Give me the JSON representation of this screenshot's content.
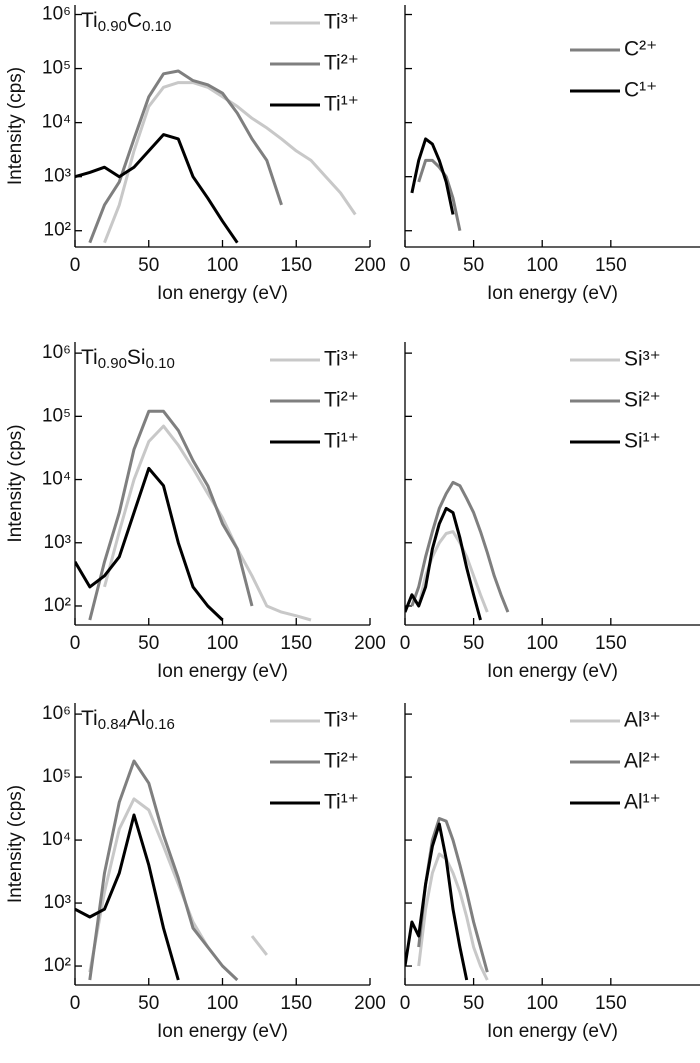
{
  "chart_data": [
    {
      "type": "line",
      "title": [
        {
          "text": "Ti"
        },
        {
          "text": "0.90",
          "sub": true
        },
        {
          "text": "C"
        },
        {
          "text": "0.10",
          "sub": true
        }
      ],
      "ylabel": "Intensity (cps)",
      "xlabel": "Ion energy (eV)",
      "log_y": true,
      "x": [
        0,
        10,
        20,
        30,
        40,
        50,
        60,
        70,
        80,
        90,
        100,
        110,
        120,
        130,
        140,
        150,
        160,
        170,
        180,
        190,
        200
      ],
      "xlim": [
        0,
        200
      ],
      "xticks": [
        0,
        50,
        100,
        150,
        200
      ],
      "ylim": [
        50,
        1500000
      ],
      "yticks": [
        {
          "value": 100,
          "label": "10²"
        },
        {
          "value": 1000,
          "label": "10³"
        },
        {
          "value": 10000,
          "label": "10⁴"
        },
        {
          "value": 100000,
          "label": "10⁵"
        },
        {
          "value": 1000000,
          "label": "10⁶"
        }
      ],
      "series": [
        {
          "name": "Ti³⁺",
          "color": "#c8c8c8",
          "values": [
            null,
            null,
            60,
            300,
            3000,
            20000,
            45000,
            55000,
            55000,
            45000,
            30000,
            20000,
            12000,
            8000,
            5000,
            3000,
            2000,
            1000,
            500,
            200,
            null
          ]
        },
        {
          "name": "Ti²⁺",
          "color": "#7f7f7f",
          "values": [
            null,
            60,
            300,
            800,
            5000,
            30000,
            80000,
            90000,
            60000,
            50000,
            35000,
            15000,
            5000,
            2000,
            300,
            null,
            null,
            null,
            null,
            null,
            null
          ]
        },
        {
          "name": "Ti¹⁺",
          "color": "#000000",
          "values": [
            1000,
            1200,
            1500,
            1000,
            1500,
            3000,
            6000,
            5000,
            1000,
            400,
            150,
            60,
            null,
            null,
            null,
            null,
            null,
            null,
            null,
            null,
            null
          ]
        }
      ]
    },
    {
      "type": "line",
      "xlabel": "Ion energy (eV)",
      "log_y": true,
      "ytick_labels": false,
      "x": [
        0,
        5,
        10,
        15,
        20,
        25,
        30,
        35,
        40,
        45,
        50,
        55,
        60,
        65,
        70,
        75,
        80,
        85,
        90,
        95,
        100
      ],
      "xlim": [
        0,
        215
      ],
      "xticks": [
        0,
        50,
        100,
        150
      ],
      "ylim": [
        50,
        1500000
      ],
      "yticks": [
        100,
        1000,
        10000,
        100000,
        1000000
      ],
      "series": [
        {
          "name": "C²⁺",
          "color": "#7f7f7f",
          "values": [
            null,
            null,
            800,
            2000,
            2000,
            1500,
            1000,
            400,
            100,
            null,
            null,
            null,
            null,
            null,
            null,
            null,
            null,
            null,
            null,
            null,
            null
          ]
        },
        {
          "name": "C¹⁺",
          "color": "#000000",
          "values": [
            null,
            500,
            2000,
            5000,
            4000,
            2000,
            800,
            200,
            null,
            null,
            null,
            null,
            null,
            null,
            null,
            null,
            null,
            null,
            null,
            null,
            null
          ]
        }
      ]
    },
    {
      "type": "line",
      "title": [
        {
          "text": "Ti"
        },
        {
          "text": "0.90",
          "sub": true
        },
        {
          "text": "Si"
        },
        {
          "text": "0.10",
          "sub": true
        }
      ],
      "ylabel": "Intensity (cps)",
      "xlabel": "Ion energy (eV)",
      "log_y": true,
      "x": [
        0,
        10,
        20,
        30,
        40,
        50,
        60,
        70,
        80,
        90,
        100,
        110,
        120,
        130,
        140,
        150,
        160,
        170,
        180,
        190,
        200
      ],
      "xlim": [
        0,
        200
      ],
      "xticks": [
        0,
        50,
        100,
        150,
        200
      ],
      "ylim": [
        50,
        1500000
      ],
      "yticks": [
        {
          "value": 100,
          "label": "10²"
        },
        {
          "value": 1000,
          "label": "10³"
        },
        {
          "value": 10000,
          "label": "10⁴"
        },
        {
          "value": 100000,
          "label": "10⁵"
        },
        {
          "value": 1000000,
          "label": "10⁶"
        }
      ],
      "series": [
        {
          "name": "Ti³⁺",
          "color": "#c8c8c8",
          "values": [
            null,
            null,
            200,
            1500,
            10000,
            40000,
            70000,
            35000,
            15000,
            6000,
            2500,
            800,
            300,
            100,
            80,
            70,
            60,
            null,
            null,
            null,
            null
          ]
        },
        {
          "name": "Ti²⁺",
          "color": "#7f7f7f",
          "values": [
            null,
            60,
            500,
            3000,
            30000,
            120000,
            120000,
            60000,
            20000,
            8000,
            2000,
            800,
            100,
            null,
            null,
            null,
            null,
            null,
            null,
            null,
            null
          ]
        },
        {
          "name": "Ti¹⁺",
          "color": "#000000",
          "values": [
            500,
            200,
            300,
            600,
            3000,
            15000,
            8000,
            1000,
            200,
            100,
            60,
            null,
            null,
            null,
            null,
            null,
            null,
            null,
            null,
            null,
            null
          ]
        }
      ]
    },
    {
      "type": "line",
      "xlabel": "Ion energy (eV)",
      "log_y": true,
      "ytick_labels": false,
      "x": [
        0,
        5,
        10,
        15,
        20,
        25,
        30,
        35,
        40,
        45,
        50,
        55,
        60,
        65,
        70,
        75,
        80,
        85,
        90,
        95,
        100
      ],
      "xlim": [
        0,
        215
      ],
      "xticks": [
        0,
        50,
        100,
        150
      ],
      "ylim": [
        50,
        1500000
      ],
      "yticks": [
        100,
        1000,
        10000,
        100000,
        1000000
      ],
      "series": [
        {
          "name": "Si³⁺",
          "color": "#c8c8c8",
          "values": [
            null,
            null,
            100,
            300,
            600,
            1000,
            1400,
            1500,
            1000,
            600,
            300,
            150,
            80,
            null,
            null,
            null,
            null,
            null,
            null,
            null,
            null
          ]
        },
        {
          "name": "Si²⁺",
          "color": "#7f7f7f",
          "values": [
            null,
            100,
            200,
            600,
            1500,
            3500,
            6000,
            9000,
            8000,
            5000,
            3000,
            1500,
            700,
            300,
            150,
            80,
            null,
            null,
            null,
            null,
            null
          ]
        },
        {
          "name": "Si¹⁺",
          "color": "#000000",
          "values": [
            80,
            150,
            100,
            200,
            800,
            2000,
            3500,
            3000,
            1200,
            400,
            150,
            60,
            null,
            null,
            null,
            null,
            null,
            null,
            null,
            null,
            null
          ]
        }
      ]
    },
    {
      "type": "line",
      "title": [
        {
          "text": "Ti"
        },
        {
          "text": "0.84",
          "sub": true
        },
        {
          "text": "Al"
        },
        {
          "text": "0.16",
          "sub": true
        }
      ],
      "ylabel": "Intensity (cps)",
      "xlabel": "Ion energy (eV)",
      "log_y": true,
      "x": [
        0,
        10,
        20,
        30,
        40,
        50,
        60,
        70,
        80,
        90,
        100,
        110,
        120,
        130,
        140,
        150,
        160,
        170,
        180,
        190,
        200
      ],
      "xlim": [
        0,
        200
      ],
      "xticks": [
        0,
        50,
        100,
        150,
        200
      ],
      "ylim": [
        50,
        1500000
      ],
      "yticks": [
        {
          "value": 100,
          "label": "10²"
        },
        {
          "value": 1000,
          "label": "10³"
        },
        {
          "value": 10000,
          "label": "10⁴"
        },
        {
          "value": 100000,
          "label": "10⁵"
        },
        {
          "value": 1000000,
          "label": "10⁶"
        }
      ],
      "series": [
        {
          "name": "Ti³⁺",
          "color": "#c8c8c8",
          "values": [
            null,
            80,
            1500,
            15000,
            45000,
            30000,
            8000,
            2000,
            500,
            200,
            null,
            null,
            300,
            150,
            null,
            null,
            null,
            null,
            null,
            null,
            null
          ]
        },
        {
          "name": "Ti²⁺",
          "color": "#7f7f7f",
          "values": [
            null,
            60,
            3000,
            40000,
            180000,
            80000,
            12000,
            2500,
            400,
            200,
            100,
            60,
            null,
            null,
            null,
            null,
            null,
            null,
            null,
            null,
            null
          ]
        },
        {
          "name": "Ti¹⁺",
          "color": "#000000",
          "values": [
            800,
            600,
            800,
            3000,
            25000,
            4000,
            400,
            60,
            null,
            null,
            null,
            null,
            null,
            null,
            null,
            null,
            null,
            null,
            null,
            null,
            null
          ]
        }
      ]
    },
    {
      "type": "line",
      "xlabel": "Ion energy (eV)",
      "log_y": true,
      "ytick_labels": false,
      "x": [
        0,
        5,
        10,
        15,
        20,
        25,
        30,
        35,
        40,
        45,
        50,
        55,
        60,
        65,
        70,
        75,
        80,
        85,
        90,
        95,
        100
      ],
      "xlim": [
        0,
        215
      ],
      "xticks": [
        0,
        50,
        100,
        150
      ],
      "ylim": [
        50,
        1500000
      ],
      "yticks": [
        100,
        1000,
        10000,
        100000,
        1000000
      ],
      "series": [
        {
          "name": "Al³⁺",
          "color": "#c8c8c8",
          "values": [
            null,
            null,
            100,
            800,
            3000,
            6000,
            5000,
            3000,
            1500,
            600,
            200,
            100,
            60,
            null,
            null,
            null,
            null,
            null,
            null,
            null,
            null
          ]
        },
        {
          "name": "Al²⁺",
          "color": "#7f7f7f",
          "values": [
            null,
            null,
            200,
            2000,
            10000,
            22000,
            20000,
            10000,
            4000,
            1500,
            500,
            200,
            80,
            null,
            null,
            null,
            null,
            null,
            null,
            null,
            null
          ]
        },
        {
          "name": "Al¹⁺",
          "color": "#000000",
          "values": [
            100,
            500,
            300,
            2000,
            8000,
            18000,
            5000,
            800,
            200,
            60,
            null,
            null,
            null,
            null,
            null,
            null,
            null,
            null,
            null,
            null,
            null
          ]
        }
      ]
    }
  ]
}
